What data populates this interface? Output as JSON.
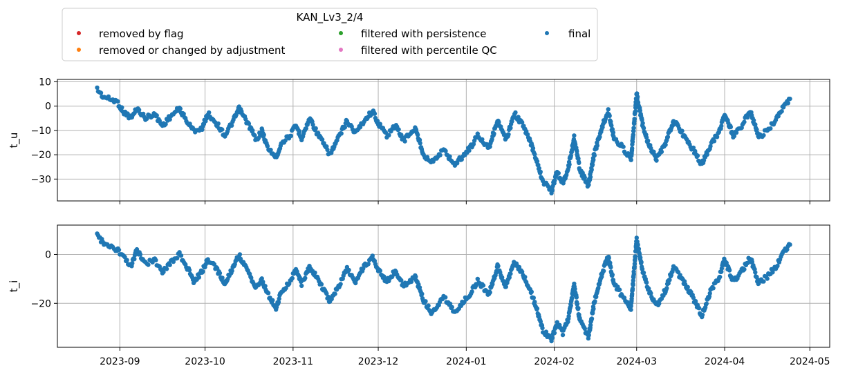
{
  "chart_data": {
    "type": "scatter",
    "legend": {
      "title": "KAN_Lv3_2/4",
      "placement": "top-left, above plots",
      "columns": 3,
      "entries": [
        {
          "label": "removed by flag",
          "color": "#d62728"
        },
        {
          "label": "removed or changed by adjustment",
          "color": "#ff7f0e"
        },
        {
          "label": "filtered with persistence",
          "color": "#2ca02c"
        },
        {
          "label": "filtered with percentile QC",
          "color": "#e377c2"
        },
        {
          "label": "final",
          "color": "#1f77b4"
        }
      ]
    },
    "x_axis": {
      "type": "date",
      "xlim": [
        "2023-08-10",
        "2024-05-08"
      ],
      "ticks": [
        "2023-09-01",
        "2023-10-01",
        "2023-11-01",
        "2023-12-01",
        "2024-01-01",
        "2024-02-01",
        "2024-03-01",
        "2024-04-01",
        "2024-05-01"
      ],
      "tick_labels": [
        "2023-09",
        "2023-10",
        "2023-11",
        "2023-12",
        "2024-01",
        "2024-02",
        "2024-03",
        "2024-04",
        "2024-05"
      ]
    },
    "grid": true,
    "panels": [
      {
        "ylabel": "t_u",
        "ylim": [
          -39,
          11
        ],
        "yticks": [
          10,
          0,
          -10,
          -20,
          -30
        ],
        "ytick_labels": [
          "10",
          "0",
          "−10",
          "−20",
          "−30"
        ],
        "series": [
          {
            "name": "final",
            "color": "#1f77b4",
            "points": [
              [
                "2023-08-24",
                7
              ],
              [
                "2023-08-26",
                4
              ],
              [
                "2023-08-28",
                3
              ],
              [
                "2023-08-31",
                2
              ],
              [
                "2023-09-02",
                -2
              ],
              [
                "2023-09-05",
                -5
              ],
              [
                "2023-09-07",
                -1
              ],
              [
                "2023-09-10",
                -5
              ],
              [
                "2023-09-13",
                -3
              ],
              [
                "2023-09-16",
                -8
              ],
              [
                "2023-09-19",
                -4
              ],
              [
                "2023-09-22",
                -1
              ],
              [
                "2023-09-25",
                -7
              ],
              [
                "2023-09-27",
                -10
              ],
              [
                "2023-09-30",
                -9
              ],
              [
                "2023-10-02",
                -3
              ],
              [
                "2023-10-05",
                -7
              ],
              [
                "2023-10-08",
                -12
              ],
              [
                "2023-10-11",
                -6
              ],
              [
                "2023-10-13",
                -1
              ],
              [
                "2023-10-15",
                -5
              ],
              [
                "2023-10-17",
                -9
              ],
              [
                "2023-10-19",
                -14
              ],
              [
                "2023-10-21",
                -10
              ],
              [
                "2023-10-23",
                -17
              ],
              [
                "2023-10-26",
                -21
              ],
              [
                "2023-10-28",
                -15
              ],
              [
                "2023-10-31",
                -12
              ],
              [
                "2023-11-02",
                -8
              ],
              [
                "2023-11-04",
                -13
              ],
              [
                "2023-11-07",
                -5
              ],
              [
                "2023-11-09",
                -10
              ],
              [
                "2023-11-11",
                -14
              ],
              [
                "2023-11-14",
                -20
              ],
              [
                "2023-11-17",
                -13
              ],
              [
                "2023-11-20",
                -6
              ],
              [
                "2023-11-23",
                -11
              ],
              [
                "2023-11-26",
                -6
              ],
              [
                "2023-11-29",
                -2
              ],
              [
                "2023-12-01",
                -7
              ],
              [
                "2023-12-04",
                -12
              ],
              [
                "2023-12-07",
                -8
              ],
              [
                "2023-12-10",
                -14
              ],
              [
                "2023-12-14",
                -9
              ],
              [
                "2023-12-17",
                -20
              ],
              [
                "2023-12-20",
                -23
              ],
              [
                "2023-12-24",
                -18
              ],
              [
                "2023-12-28",
                -24
              ],
              [
                "2024-01-01",
                -19
              ],
              [
                "2024-01-03",
                -16
              ],
              [
                "2024-01-05",
                -12
              ],
              [
                "2024-01-09",
                -17
              ],
              [
                "2024-01-12",
                -6
              ],
              [
                "2024-01-15",
                -14
              ],
              [
                "2024-01-18",
                -3
              ],
              [
                "2024-01-21",
                -8
              ],
              [
                "2024-01-24",
                -16
              ],
              [
                "2024-01-26",
                -23
              ],
              [
                "2024-01-28",
                -31
              ],
              [
                "2024-01-31",
                -35
              ],
              [
                "2024-02-02",
                -27
              ],
              [
                "2024-02-04",
                -32
              ],
              [
                "2024-02-06",
                -25
              ],
              [
                "2024-02-08",
                -13
              ],
              [
                "2024-02-10",
                -26
              ],
              [
                "2024-02-13",
                -33
              ],
              [
                "2024-02-15",
                -20
              ],
              [
                "2024-02-18",
                -8
              ],
              [
                "2024-02-20",
                -2
              ],
              [
                "2024-02-22",
                -13
              ],
              [
                "2024-02-25",
                -17
              ],
              [
                "2024-02-28",
                -22
              ],
              [
                "2024-03-01",
                5
              ],
              [
                "2024-03-03",
                -7
              ],
              [
                "2024-03-05",
                -15
              ],
              [
                "2024-03-08",
                -22
              ],
              [
                "2024-03-11",
                -16
              ],
              [
                "2024-03-14",
                -6
              ],
              [
                "2024-03-17",
                -11
              ],
              [
                "2024-03-21",
                -18
              ],
              [
                "2024-03-24",
                -24
              ],
              [
                "2024-03-27",
                -16
              ],
              [
                "2024-03-30",
                -11
              ],
              [
                "2024-04-01",
                -3
              ],
              [
                "2024-04-04",
                -12
              ],
              [
                "2024-04-07",
                -8
              ],
              [
                "2024-04-10",
                -2
              ],
              [
                "2024-04-13",
                -13
              ],
              [
                "2024-04-16",
                -10
              ],
              [
                "2024-04-19",
                -6
              ],
              [
                "2024-04-22",
                0
              ],
              [
                "2024-04-24",
                3
              ]
            ]
          }
        ]
      },
      {
        "ylabel": "t_i",
        "ylim": [
          -38,
          12
        ],
        "yticks": [
          0,
          -20
        ],
        "ytick_labels": [
          "0",
          "−20"
        ],
        "series": [
          {
            "name": "final",
            "color": "#1f77b4",
            "points": [
              [
                "2023-08-24",
                8
              ],
              [
                "2023-08-26",
                5
              ],
              [
                "2023-08-28",
                3
              ],
              [
                "2023-08-31",
                2
              ],
              [
                "2023-09-02",
                -1
              ],
              [
                "2023-09-05",
                -5
              ],
              [
                "2023-09-07",
                2
              ],
              [
                "2023-09-10",
                -4
              ],
              [
                "2023-09-13",
                -2
              ],
              [
                "2023-09-16",
                -7
              ],
              [
                "2023-09-19",
                -3
              ],
              [
                "2023-09-22",
                0
              ],
              [
                "2023-09-25",
                -6
              ],
              [
                "2023-09-27",
                -11
              ],
              [
                "2023-09-30",
                -7
              ],
              [
                "2023-10-02",
                -2
              ],
              [
                "2023-10-05",
                -6
              ],
              [
                "2023-10-08",
                -12
              ],
              [
                "2023-10-11",
                -5
              ],
              [
                "2023-10-13",
                0
              ],
              [
                "2023-10-15",
                -5
              ],
              [
                "2023-10-17",
                -9
              ],
              [
                "2023-10-19",
                -14
              ],
              [
                "2023-10-21",
                -10
              ],
              [
                "2023-10-23",
                -16
              ],
              [
                "2023-10-26",
                -22
              ],
              [
                "2023-10-28",
                -15
              ],
              [
                "2023-10-31",
                -11
              ],
              [
                "2023-11-02",
                -6
              ],
              [
                "2023-11-04",
                -12
              ],
              [
                "2023-11-07",
                -5
              ],
              [
                "2023-11-09",
                -9
              ],
              [
                "2023-11-11",
                -13
              ],
              [
                "2023-11-14",
                -19
              ],
              [
                "2023-11-17",
                -13
              ],
              [
                "2023-11-20",
                -6
              ],
              [
                "2023-11-23",
                -11
              ],
              [
                "2023-11-26",
                -5
              ],
              [
                "2023-11-29",
                -1
              ],
              [
                "2023-12-01",
                -6
              ],
              [
                "2023-12-04",
                -11
              ],
              [
                "2023-12-07",
                -7
              ],
              [
                "2023-12-10",
                -13
              ],
              [
                "2023-12-14",
                -9
              ],
              [
                "2023-12-17",
                -19
              ],
              [
                "2023-12-20",
                -24
              ],
              [
                "2023-12-24",
                -17
              ],
              [
                "2023-12-28",
                -24
              ],
              [
                "2024-01-01",
                -18
              ],
              [
                "2024-01-03",
                -15
              ],
              [
                "2024-01-05",
                -11
              ],
              [
                "2024-01-09",
                -16
              ],
              [
                "2024-01-12",
                -5
              ],
              [
                "2024-01-15",
                -13
              ],
              [
                "2024-01-18",
                -3
              ],
              [
                "2024-01-21",
                -8
              ],
              [
                "2024-01-24",
                -16
              ],
              [
                "2024-01-26",
                -23
              ],
              [
                "2024-01-28",
                -31
              ],
              [
                "2024-01-31",
                -35
              ],
              [
                "2024-02-02",
                -28
              ],
              [
                "2024-02-04",
                -32
              ],
              [
                "2024-02-06",
                -26
              ],
              [
                "2024-02-08",
                -12
              ],
              [
                "2024-02-10",
                -27
              ],
              [
                "2024-02-13",
                -34
              ],
              [
                "2024-02-15",
                -20
              ],
              [
                "2024-02-18",
                -7
              ],
              [
                "2024-02-20",
                -1
              ],
              [
                "2024-02-22",
                -12
              ],
              [
                "2024-02-25",
                -17
              ],
              [
                "2024-02-28",
                -22
              ],
              [
                "2024-03-01",
                6
              ],
              [
                "2024-03-03",
                -6
              ],
              [
                "2024-03-05",
                -14
              ],
              [
                "2024-03-08",
                -21
              ],
              [
                "2024-03-11",
                -15
              ],
              [
                "2024-03-14",
                -5
              ],
              [
                "2024-03-17",
                -10
              ],
              [
                "2024-03-21",
                -18
              ],
              [
                "2024-03-24",
                -25
              ],
              [
                "2024-03-27",
                -15
              ],
              [
                "2024-03-30",
                -10
              ],
              [
                "2024-04-01",
                -2
              ],
              [
                "2024-04-04",
                -11
              ],
              [
                "2024-04-07",
                -7
              ],
              [
                "2024-04-10",
                -1
              ],
              [
                "2024-04-13",
                -12
              ],
              [
                "2024-04-16",
                -9
              ],
              [
                "2024-04-19",
                -5
              ],
              [
                "2024-04-22",
                1
              ],
              [
                "2024-04-24",
                4
              ]
            ]
          }
        ]
      }
    ]
  }
}
